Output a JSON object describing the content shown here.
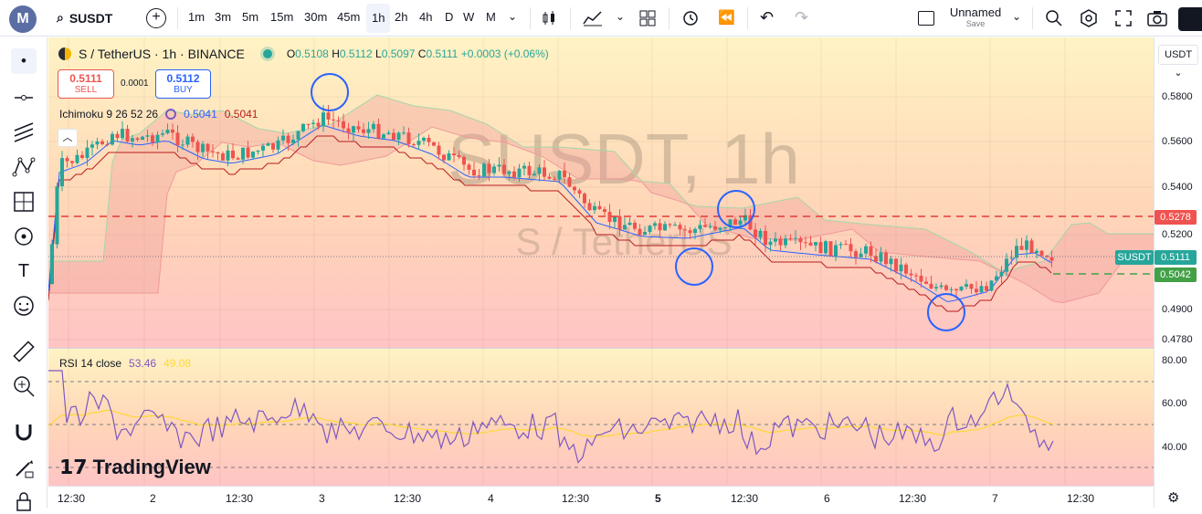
{
  "topbar": {
    "logo": "M",
    "symbol": "SUSDT",
    "timeframes": [
      "1m",
      "3m",
      "5m",
      "15m",
      "30m",
      "45m",
      "1h",
      "2h",
      "4h",
      "D",
      "W",
      "M"
    ],
    "active_timeframe": "1h",
    "layout_name": "Unnamed",
    "layout_sub": "Save"
  },
  "legend": {
    "title": "S / TetherUS · 1h · BINANCE",
    "o_lbl": "O",
    "o": "0.5108",
    "h_lbl": "H",
    "h": "0.5112",
    "l_lbl": "L",
    "l": "0.5097",
    "c_lbl": "C",
    "c": "0.5111",
    "change": "+0.0003 (+0.06%)",
    "sell_price": "0.5111",
    "sell_label": "SELL",
    "spread": "0.0001",
    "buy_price": "0.5112",
    "buy_label": "BUY",
    "ichimoku_label": "Ichimoku 9 26 52 26",
    "ichimoku_v1": "0.5041",
    "ichimoku_v2": "0.5041",
    "rsi_label": "RSI 14 close",
    "rsi_v1": "53.46",
    "rsi_v2": "49.08"
  },
  "watermark": {
    "main": "SUSDT, 1h",
    "sub": "S / TetherUS"
  },
  "price_axis": {
    "currency": "USDT",
    "labels": [
      "0.5800",
      "0.5600",
      "0.5400",
      "0.5200",
      "0.5042",
      "0.4900",
      "0.4780"
    ],
    "tag_red": "0.5278",
    "tag_symbol": "SUSDT",
    "tag_last": "0.5111",
    "tag_green": "0.5042",
    "rsi_labels": [
      "80.00",
      "60.00",
      "40.00"
    ]
  },
  "time_axis": {
    "labels": [
      "12:30",
      "2",
      "12:30",
      "3",
      "12:30",
      "4",
      "12:30",
      "5",
      "12:30",
      "6",
      "12:30",
      "7",
      "12:30"
    ]
  },
  "branding": "TradingView",
  "colors": {
    "up": "#26a69a",
    "down": "#ef5350",
    "tenkan": "#2962ff",
    "kijun": "#b71c1c",
    "rsi": "#7e57c2",
    "rsi_ma": "#fdd835",
    "cloud_green": "#a5d6a7",
    "cloud_red": "#ef9a9a"
  }
}
